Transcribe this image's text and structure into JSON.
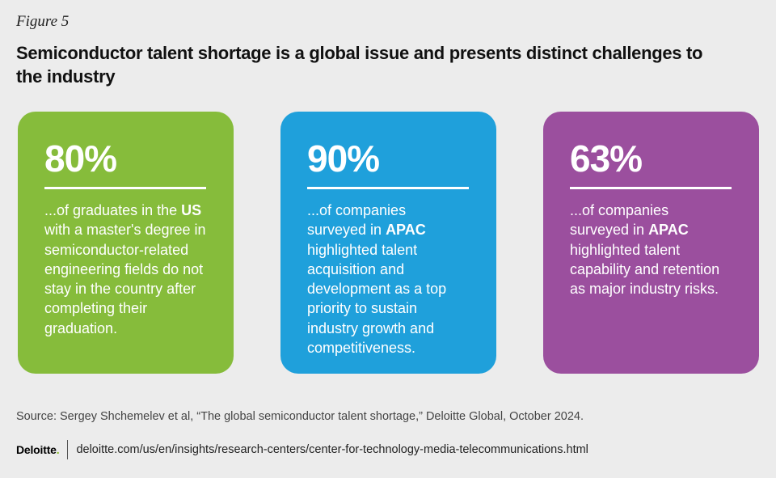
{
  "figure_label": "Figure 5",
  "title": "Semiconductor talent shortage is a global issue and presents distinct challenges to the industry",
  "chart_data": {
    "type": "table",
    "title": "Semiconductor talent shortage is a global issue and presents distinct challenges to the industry",
    "stats": [
      {
        "value": "80%",
        "color": "#86bc3b",
        "desc_before": "...of graduates in the ",
        "desc_bold": "US",
        "desc_after": " with a master's degree in semiconductor-related engineering fields do not stay in the country after completing their graduation."
      },
      {
        "value": "90%",
        "color": "#1fa0db",
        "desc_before": "...of companies surveyed in ",
        "desc_bold": "APAC",
        "desc_after": " highlighted talent acquisition and development as a top priority to sustain industry growth and competitiveness."
      },
      {
        "value": "63%",
        "color": "#9b4f9e",
        "desc_before": "...of companies surveyed in ",
        "desc_bold": "APAC",
        "desc_after": " highlighted talent capability and retention as major industry risks."
      }
    ]
  },
  "source": "Source: Sergey Shchemelev et al, “The global semiconductor talent shortage,” Deloitte Global, October 2024.",
  "footer": {
    "logo_text": "Deloitte",
    "logo_dot": ".",
    "url": "deloitte.com/us/en/insights/research-centers/center-for-technology-media-telecommunications.html"
  }
}
